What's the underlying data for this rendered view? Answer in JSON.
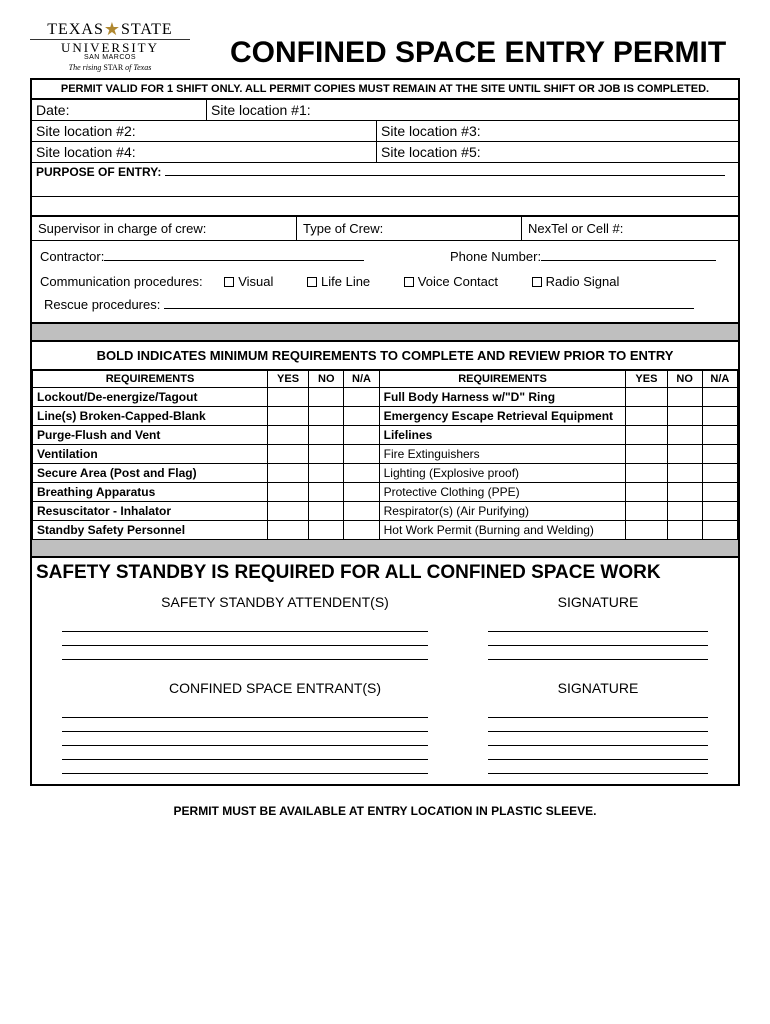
{
  "logo": {
    "line1a": "TEXAS",
    "line1b": "STATE",
    "line2": "UNIVERSITY",
    "line3": "SAN MARCOS",
    "line4_pre": "The rising ",
    "line4_mid": "STAR",
    "line4_post": " of Texas"
  },
  "title": "CONFINED SPACE ENTRY PERMIT",
  "banner": "PERMIT VALID FOR 1 SHIFT ONLY.  ALL PERMIT COPIES MUST REMAIN AT THE SITE UNTIL SHIFT OR JOB IS COMPLETED.",
  "fields": {
    "date": "Date:",
    "site1": "Site location #1:",
    "site2": "Site location #2:",
    "site3": "Site location #3:",
    "site4": "Site location #4:",
    "site5": "Site location #5:",
    "purpose": "PURPOSE OF ENTRY",
    "supervisor": "Supervisor in charge of crew:",
    "crew_type": "Type of Crew:",
    "nextel": "NexTel or Cell #:",
    "contractor": "Contractor:",
    "phone": "Phone Number:",
    "comm": "Communication procedures:",
    "opt_visual": "Visual",
    "opt_lifeline": "Life Line",
    "opt_voice": "Voice Contact",
    "opt_radio": "Radio Signal",
    "rescue": "Rescue procedures:"
  },
  "req_note": "BOLD INDICATES MINIMUM REQUIREMENTS TO COMPLETE AND REVIEW PRIOR TO ENTRY",
  "req_headers": {
    "req": "REQUIREMENTS",
    "yes": "YES",
    "no": "NO",
    "na": "N/A"
  },
  "req_left": [
    {
      "label": "Lockout/De-energize/Tagout",
      "bold": true
    },
    {
      "label": "Line(s) Broken-Capped-Blank",
      "bold": true
    },
    {
      "label": "Purge-Flush and Vent",
      "bold": true
    },
    {
      "label": "Ventilation",
      "bold": true
    },
    {
      "label": "Secure Area (Post and Flag)",
      "bold": true
    },
    {
      "label": "Breathing Apparatus",
      "bold": true
    },
    {
      "label": "Resuscitator - Inhalator",
      "bold": true
    },
    {
      "label": "Standby Safety Personnel",
      "bold": true
    }
  ],
  "req_right": [
    {
      "label": "Full Body Harness w/\"D\" Ring",
      "bold": true
    },
    {
      "label": "Emergency Escape Retrieval Equipment",
      "bold": true
    },
    {
      "label": "Lifelines",
      "bold": true
    },
    {
      "label": "Fire Extinguishers",
      "bold": false
    },
    {
      "label": "Lighting (Explosive proof)",
      "bold": false
    },
    {
      "label": "Protective Clothing (PPE)",
      "bold": false
    },
    {
      "label": "Respirator(s) (Air Purifying)",
      "bold": false
    },
    {
      "label": "Hot Work Permit (Burning and Welding)",
      "bold": false
    }
  ],
  "safety_title": "SAFETY STANDBY IS REQUIRED FOR ALL CONFINED SPACE WORK",
  "sig": {
    "attendants": "SAFETY STANDBY ATTENDENT(S)",
    "entrants": "CONFINED SPACE ENTRANT(S)",
    "signature": "SIGNATURE"
  },
  "footer": "PERMIT MUST BE AVAILABLE AT ENTRY LOCATION IN PLASTIC SLEEVE."
}
